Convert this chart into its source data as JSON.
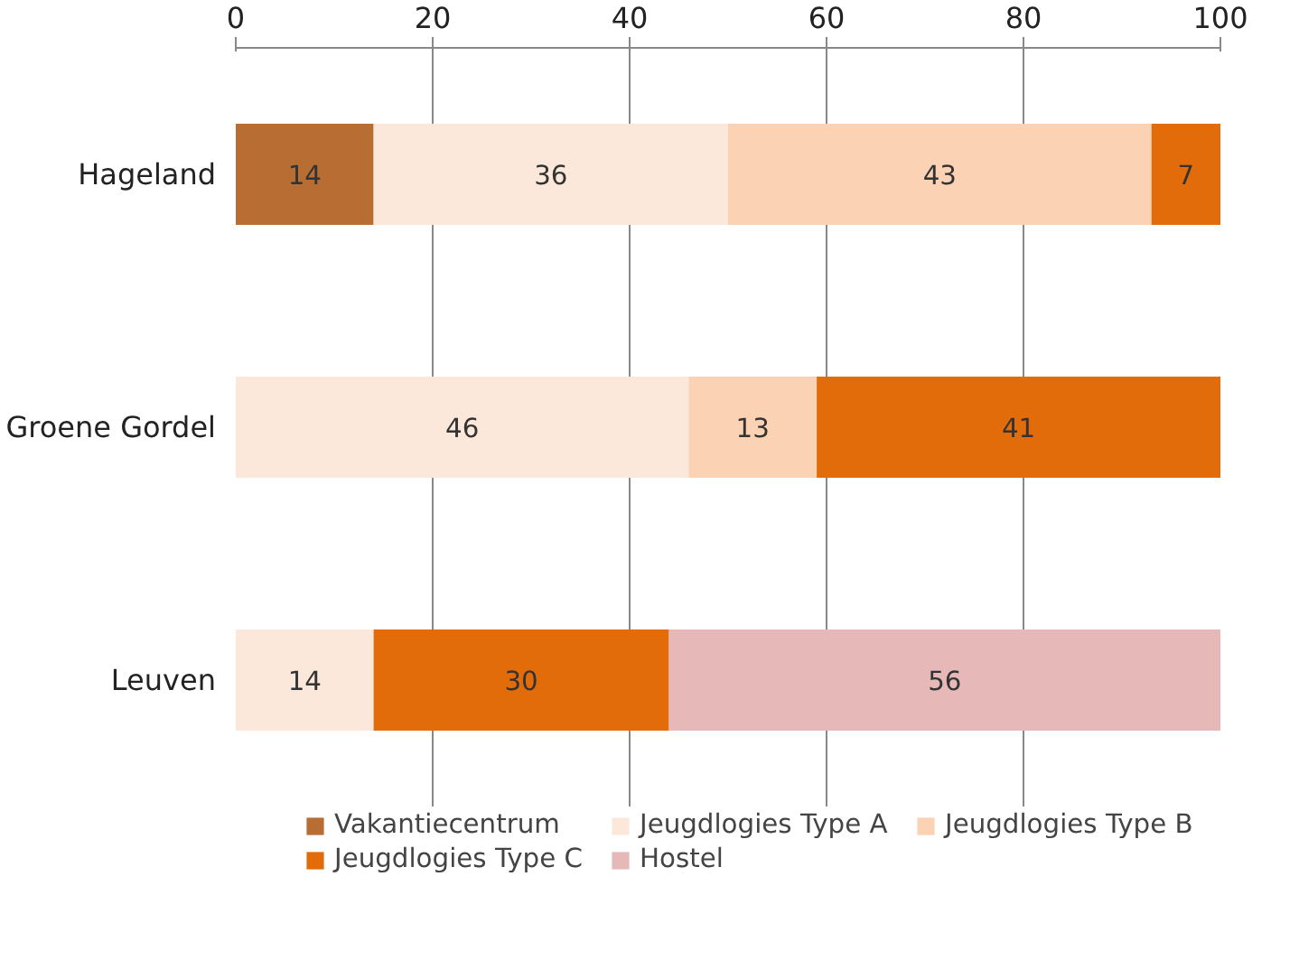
{
  "chart_data": {
    "type": "bar",
    "orientation": "horizontal",
    "stacked": true,
    "categories": [
      "Hageland",
      "Groene Gordel",
      "Leuven"
    ],
    "series": [
      {
        "name": "Vakantiecentrum",
        "color": "#b86e33",
        "values": [
          14,
          null,
          null
        ]
      },
      {
        "name": "Jeugdlogies Type A",
        "color": "#fce8da",
        "values": [
          36,
          46,
          14
        ]
      },
      {
        "name": "Jeugdlogies Type B",
        "color": "#fbd3b4",
        "values": [
          43,
          13,
          null
        ]
      },
      {
        "name": "Jeugdlogies Type C",
        "color": "#e36c0a",
        "values": [
          7,
          41,
          30
        ]
      },
      {
        "name": "Hostel",
        "color": "#e6b9b8",
        "values": [
          null,
          null,
          56
        ]
      }
    ],
    "xlim": [
      0,
      100
    ],
    "xticks": [
      0,
      20,
      40,
      60,
      80,
      100
    ],
    "grid": "x",
    "legend": "bottom",
    "data_labels": true
  }
}
